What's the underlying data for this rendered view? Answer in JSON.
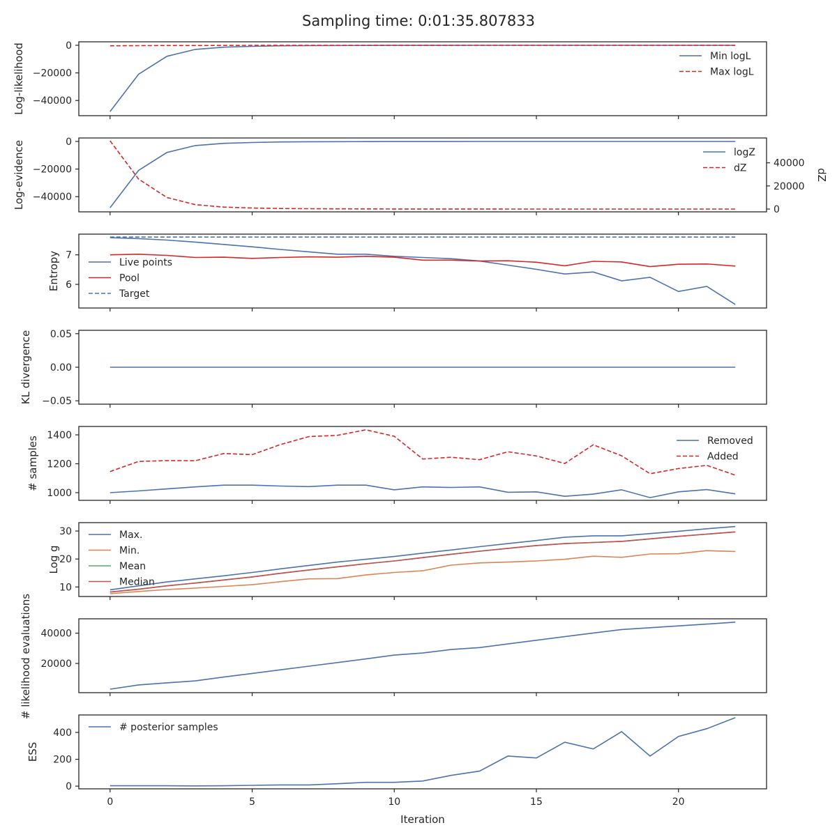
{
  "title": "Sampling time: 0:01:35.807833",
  "colors": {
    "blue": "#4c72b0",
    "red": "#d62728",
    "orange": "#dd8452",
    "green": "#55a868",
    "crimson": "#c44e52",
    "axis": "#262626"
  },
  "chart_data": [
    {
      "type": "line",
      "ylabel": "Log-likelihood",
      "xlim": [
        -1.1,
        23.1
      ],
      "ylim": [
        -51000,
        2500
      ],
      "yticks": [
        0,
        -20000,
        -40000
      ],
      "ytick_labels": [
        "0",
        "−20000",
        "−40000"
      ],
      "legend": {
        "placement": "upper-right"
      },
      "x": [
        0,
        1,
        2,
        3,
        4,
        5,
        6,
        7,
        8,
        9,
        10,
        11,
        12,
        13,
        14,
        15,
        16,
        17,
        18,
        19,
        20,
        21,
        22
      ],
      "series": [
        {
          "name": "Min logL",
          "color": "#4c72b0",
          "dash": "solid",
          "values": [
            -48000,
            -21000,
            -8000,
            -3000,
            -1400,
            -800,
            -400,
            -250,
            -150,
            -100,
            -80,
            -60,
            -50,
            -40,
            -30,
            -25,
            -20,
            -15,
            -12,
            -10,
            -8,
            -6,
            -5
          ]
        },
        {
          "name": "Max logL",
          "color": "#d62728",
          "dash": "dashed",
          "values": [
            -400,
            -300,
            -200,
            -150,
            -100,
            -80,
            -60,
            -50,
            -40,
            -30,
            -25,
            -20,
            -15,
            -12,
            -10,
            -8,
            -6,
            -5,
            -4,
            -3,
            -2,
            -1,
            0
          ]
        }
      ]
    },
    {
      "type": "line",
      "ylabel": "Log-evidence",
      "y2label": "dZ",
      "xlim": [
        -1.1,
        23.1
      ],
      "ylim": [
        -51000,
        2500
      ],
      "yticks": [
        0,
        -20000,
        -40000
      ],
      "ytick_labels": [
        "0",
        "−20000",
        "−40000"
      ],
      "y2lim": [
        -2400,
        61500
      ],
      "y2ticks": [
        0,
        20000,
        40000
      ],
      "y2tick_labels": [
        "0",
        "20000",
        "40000"
      ],
      "legend": {
        "placement": "upper-right"
      },
      "x": [
        0,
        1,
        2,
        3,
        4,
        5,
        6,
        7,
        8,
        9,
        10,
        11,
        12,
        13,
        14,
        15,
        16,
        17,
        18,
        19,
        20,
        21,
        22
      ],
      "series": [
        {
          "name": "logZ",
          "color": "#4c72b0",
          "dash": "solid",
          "axis": "left",
          "values": [
            -48000,
            -21000,
            -8000,
            -3000,
            -1400,
            -800,
            -400,
            -250,
            -150,
            -100,
            -80,
            -60,
            -50,
            -40,
            -30,
            -25,
            -20,
            -15,
            -12,
            -10,
            -8,
            -6,
            -5
          ]
        },
        {
          "name": "dZ",
          "color": "#d62728",
          "dash": "dashed",
          "axis": "right",
          "values": [
            59000,
            26000,
            10000,
            3800,
            1700,
            900,
            500,
            300,
            200,
            150,
            100,
            80,
            60,
            50,
            40,
            30,
            25,
            20,
            15,
            10,
            8,
            6,
            5
          ]
        }
      ]
    },
    {
      "type": "line",
      "ylabel": "Entropy",
      "xlim": [
        -1.1,
        23.1
      ],
      "ylim": [
        5.2,
        7.7
      ],
      "yticks": [
        6,
        7
      ],
      "ytick_labels": [
        "6",
        "7"
      ],
      "legend": {
        "placement": "center-left"
      },
      "x": [
        0,
        1,
        2,
        3,
        4,
        5,
        6,
        7,
        8,
        9,
        10,
        11,
        12,
        13,
        14,
        15,
        16,
        17,
        18,
        19,
        20,
        21,
        22
      ],
      "series": [
        {
          "name": "Live points",
          "color": "#4c72b0",
          "dash": "solid",
          "values": [
            7.58,
            7.55,
            7.5,
            7.43,
            7.35,
            7.27,
            7.18,
            7.1,
            7.02,
            7.02,
            6.95,
            6.91,
            6.87,
            6.79,
            6.65,
            6.51,
            6.35,
            6.42,
            6.12,
            6.24,
            5.76,
            5.93,
            5.32
          ]
        },
        {
          "name": "Pool",
          "color": "#d62728",
          "dash": "solid",
          "values": [
            7.0,
            7.02,
            6.98,
            6.91,
            6.92,
            6.88,
            6.91,
            6.93,
            6.92,
            6.95,
            6.92,
            6.82,
            6.82,
            6.79,
            6.8,
            6.75,
            6.63,
            6.78,
            6.76,
            6.6,
            6.68,
            6.69,
            6.62
          ]
        },
        {
          "name": "Target",
          "color": "#4c72b0",
          "dash": "dashed",
          "values": [
            7.6,
            7.6,
            7.6,
            7.6,
            7.6,
            7.6,
            7.6,
            7.6,
            7.6,
            7.6,
            7.6,
            7.6,
            7.6,
            7.6,
            7.6,
            7.6,
            7.6,
            7.6,
            7.6,
            7.6,
            7.6,
            7.6,
            7.6
          ]
        }
      ]
    },
    {
      "type": "line",
      "ylabel": "KL divergence",
      "xlim": [
        -1.1,
        23.1
      ],
      "ylim": [
        -0.055,
        0.055
      ],
      "yticks": [
        0.05,
        0.0,
        -0.05
      ],
      "ytick_labels": [
        "0.05",
        "0.00",
        "−0.05"
      ],
      "x": [
        0,
        1,
        2,
        3,
        4,
        5,
        6,
        7,
        8,
        9,
        10,
        11,
        12,
        13,
        14,
        15,
        16,
        17,
        18,
        19,
        20,
        21,
        22
      ],
      "series": [
        {
          "color": "#4c72b0",
          "dash": "solid",
          "values": [
            0,
            0,
            0,
            0,
            0,
            0,
            0,
            0,
            0,
            0,
            0,
            0,
            0,
            0,
            0,
            0,
            0,
            0,
            0,
            0,
            0,
            0,
            0
          ]
        }
      ]
    },
    {
      "type": "line",
      "ylabel": "# samples",
      "xlim": [
        -1.1,
        23.1
      ],
      "ylim": [
        947,
        1458
      ],
      "yticks": [
        1000,
        1200,
        1400
      ],
      "ytick_labels": [
        "1000",
        "1200",
        "1400"
      ],
      "legend": {
        "placement": "upper-right"
      },
      "x": [
        0,
        1,
        2,
        3,
        4,
        5,
        6,
        7,
        8,
        9,
        10,
        11,
        12,
        13,
        14,
        15,
        16,
        17,
        18,
        19,
        20,
        21,
        22
      ],
      "series": [
        {
          "name": "Removed",
          "color": "#4c72b0",
          "dash": "solid",
          "values": [
            1000,
            1012,
            1026,
            1040,
            1052,
            1052,
            1046,
            1042,
            1052,
            1052,
            1020,
            1040,
            1036,
            1040,
            1003,
            1006,
            975,
            990,
            1020,
            966,
            1006,
            1021,
            992
          ]
        },
        {
          "name": "Added",
          "color": "#d62728",
          "dash": "dashed",
          "values": [
            1146,
            1216,
            1222,
            1221,
            1271,
            1263,
            1333,
            1388,
            1397,
            1435,
            1390,
            1233,
            1245,
            1228,
            1283,
            1254,
            1202,
            1331,
            1255,
            1131,
            1167,
            1189,
            1121
          ]
        }
      ]
    },
    {
      "type": "line",
      "ylabel": "Log g",
      "xlim": [
        -1.1,
        23.1
      ],
      "ylim": [
        6.6,
        33.0
      ],
      "yticks": [
        10,
        20,
        30
      ],
      "ytick_labels": [
        "10",
        "20",
        "30"
      ],
      "legend": {
        "placement": "upper-left"
      },
      "x": [
        0,
        1,
        2,
        3,
        4,
        5,
        6,
        7,
        8,
        9,
        10,
        11,
        12,
        13,
        14,
        15,
        16,
        17,
        18,
        19,
        20,
        21,
        22
      ],
      "series": [
        {
          "name": "Max.",
          "color": "#4c72b0",
          "dash": "solid",
          "values": [
            9.0,
            10.4,
            11.8,
            12.9,
            14.0,
            15.2,
            16.5,
            17.7,
            18.9,
            19.9,
            20.9,
            22.1,
            23.2,
            24.4,
            25.5,
            26.6,
            27.8,
            28.3,
            28.3,
            29.1,
            29.9,
            30.8,
            31.6
          ]
        },
        {
          "name": "Min.",
          "color": "#dd8452",
          "dash": "solid",
          "values": [
            7.6,
            8.4,
            9.1,
            9.6,
            10.2,
            10.8,
            11.9,
            12.9,
            13.0,
            14.3,
            15.2,
            15.8,
            17.8,
            18.6,
            18.9,
            19.3,
            19.9,
            21.0,
            20.6,
            21.8,
            21.9,
            23.0,
            22.7
          ]
        },
        {
          "name": "Mean",
          "color": "#55a868",
          "dash": "solid",
          "values": [
            8.2,
            9.2,
            10.4,
            11.4,
            12.5,
            13.6,
            14.9,
            16.1,
            17.2,
            18.3,
            19.3,
            20.5,
            21.7,
            22.8,
            23.8,
            24.8,
            25.5,
            25.9,
            26.3,
            27.2,
            28.1,
            28.9,
            29.7
          ]
        },
        {
          "name": "Median",
          "color": "#c44e52",
          "dash": "solid",
          "values": [
            8.2,
            9.2,
            10.4,
            11.4,
            12.5,
            13.6,
            14.9,
            16.1,
            17.2,
            18.3,
            19.3,
            20.5,
            21.7,
            22.8,
            23.8,
            24.8,
            25.5,
            25.9,
            26.3,
            27.2,
            28.1,
            28.9,
            29.7
          ]
        }
      ]
    },
    {
      "type": "line",
      "ylabel": "# likelihood evaluations",
      "xlim": [
        -1.1,
        23.1
      ],
      "ylim": [
        700,
        49500
      ],
      "yticks": [
        20000,
        40000
      ],
      "ytick_labels": [
        "20000",
        "40000"
      ],
      "x": [
        0,
        1,
        2,
        3,
        4,
        5,
        6,
        7,
        8,
        9,
        10,
        11,
        12,
        13,
        14,
        15,
        16,
        17,
        18,
        19,
        20,
        21,
        22
      ],
      "series": [
        {
          "color": "#4c72b0",
          "dash": "solid",
          "values": [
            3000,
            5800,
            7200,
            8500,
            11000,
            13400,
            15800,
            18200,
            20600,
            23000,
            25500,
            26900,
            29200,
            30500,
            32900,
            35300,
            37700,
            40100,
            42400,
            43600,
            44800,
            46000,
            47300
          ]
        }
      ]
    },
    {
      "type": "line",
      "ylabel": "ESS",
      "xlabel": "Iteration",
      "xlim": [
        -1.1,
        23.1
      ],
      "ylim": [
        -20,
        530
      ],
      "yticks": [
        0,
        200,
        400
      ],
      "ytick_labels": [
        "0",
        "200",
        "400"
      ],
      "xticks": [
        0,
        5,
        10,
        15,
        20
      ],
      "xtick_labels": [
        "0",
        "5",
        "10",
        "15",
        "20"
      ],
      "legend": {
        "placement": "upper-left"
      },
      "x": [
        0,
        1,
        2,
        3,
        4,
        5,
        6,
        7,
        8,
        9,
        10,
        11,
        12,
        13,
        14,
        15,
        16,
        17,
        18,
        19,
        20,
        21,
        22
      ],
      "series": [
        {
          "name": "# posterior samples",
          "color": "#4c72b0",
          "dash": "solid",
          "values": [
            3,
            3,
            3,
            2,
            3,
            6,
            9,
            9,
            18,
            28,
            28,
            38,
            80,
            112,
            224,
            210,
            327,
            277,
            406,
            224,
            370,
            428,
            510
          ]
        }
      ]
    }
  ]
}
